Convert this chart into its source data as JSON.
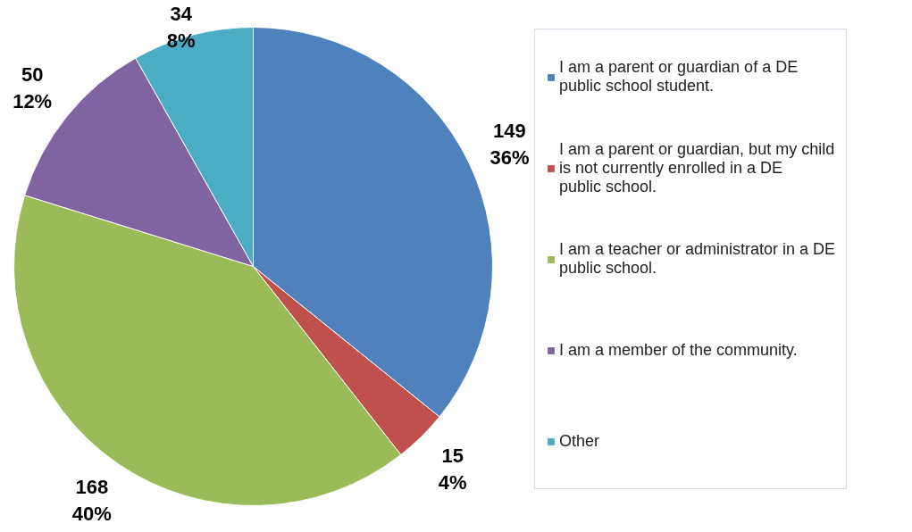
{
  "chart_data": {
    "type": "pie",
    "categories": [
      "I am a parent or guardian of a DE public school student.",
      "I am a parent or guardian, but my child is not currently enrolled in a DE public school.",
      "I am a teacher or administrator in a DE public school.",
      "I am a member of the community.",
      "Other"
    ],
    "values": [
      149,
      15,
      168,
      50,
      34
    ],
    "colors": [
      "#4f81bd",
      "#c0504d",
      "#9bbb59",
      "#8064a2",
      "#4bacc6"
    ],
    "value_labels": [
      "149\n36%",
      "15\n4%",
      "168\n40%",
      "50\n12%",
      "34\n8%"
    ],
    "legend": "right"
  }
}
